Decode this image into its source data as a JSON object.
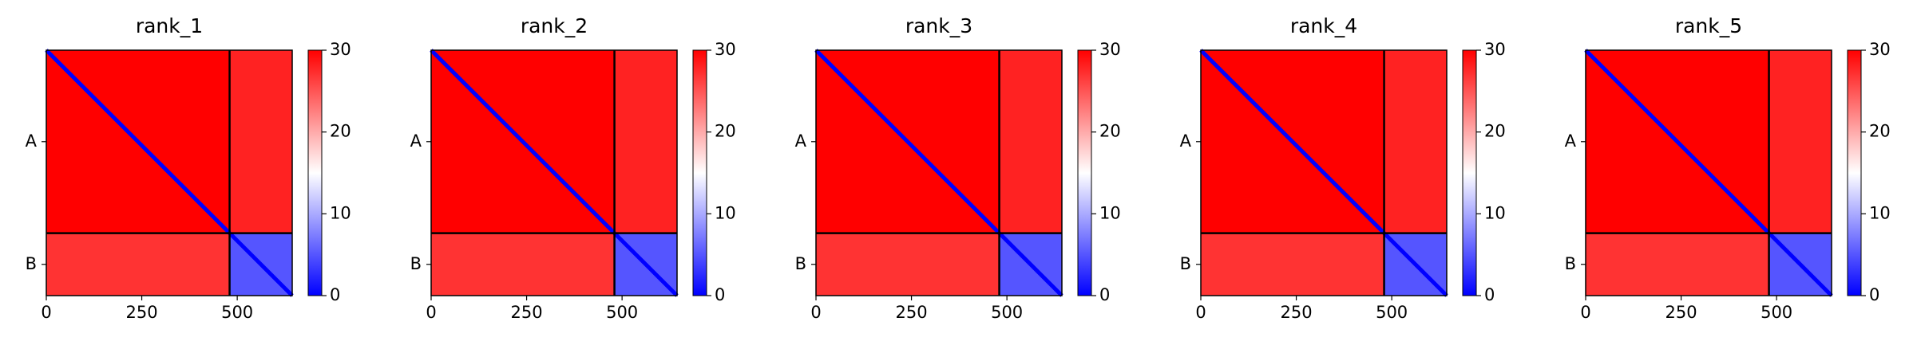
{
  "chart_data": [
    {
      "type": "heatmap",
      "title": "rank_1",
      "cmap": "bwr",
      "xlim": [
        0,
        644
      ],
      "ylim": [
        644,
        0
      ],
      "xticks": [
        0,
        250,
        500
      ],
      "yticks": [
        {
          "value": 240,
          "label": "A"
        },
        {
          "value": 562,
          "label": "B"
        }
      ],
      "chain_breaks": [
        480
      ],
      "clim": [
        0,
        30
      ],
      "cticks": [
        0,
        10,
        20,
        30
      ],
      "diagonal_value": 0,
      "blocks": [
        {
          "x": [
            0,
            480
          ],
          "y": [
            0,
            480
          ],
          "value": 30
        },
        {
          "x": [
            480,
            644
          ],
          "y": [
            0,
            480
          ],
          "value": 28
        },
        {
          "x": [
            0,
            480
          ],
          "y": [
            480,
            644
          ],
          "value": 27
        },
        {
          "x": [
            480,
            644
          ],
          "y": [
            480,
            644
          ],
          "value": 5
        }
      ]
    },
    {
      "type": "heatmap",
      "title": "rank_2",
      "cmap": "bwr",
      "xlim": [
        0,
        644
      ],
      "ylim": [
        644,
        0
      ],
      "xticks": [
        0,
        250,
        500
      ],
      "yticks": [
        {
          "value": 240,
          "label": "A"
        },
        {
          "value": 562,
          "label": "B"
        }
      ],
      "chain_breaks": [
        480
      ],
      "clim": [
        0,
        30
      ],
      "cticks": [
        0,
        10,
        20,
        30
      ],
      "diagonal_value": 0,
      "blocks": [
        {
          "x": [
            0,
            480
          ],
          "y": [
            0,
            480
          ],
          "value": 30
        },
        {
          "x": [
            480,
            644
          ],
          "y": [
            0,
            480
          ],
          "value": 28
        },
        {
          "x": [
            0,
            480
          ],
          "y": [
            480,
            644
          ],
          "value": 27
        },
        {
          "x": [
            480,
            644
          ],
          "y": [
            480,
            644
          ],
          "value": 5
        }
      ]
    },
    {
      "type": "heatmap",
      "title": "rank_3",
      "cmap": "bwr",
      "xlim": [
        0,
        644
      ],
      "ylim": [
        644,
        0
      ],
      "xticks": [
        0,
        250,
        500
      ],
      "yticks": [
        {
          "value": 240,
          "label": "A"
        },
        {
          "value": 562,
          "label": "B"
        }
      ],
      "chain_breaks": [
        480
      ],
      "clim": [
        0,
        30
      ],
      "cticks": [
        0,
        10,
        20,
        30
      ],
      "diagonal_value": 0,
      "blocks": [
        {
          "x": [
            0,
            480
          ],
          "y": [
            0,
            480
          ],
          "value": 30
        },
        {
          "x": [
            480,
            644
          ],
          "y": [
            0,
            480
          ],
          "value": 28
        },
        {
          "x": [
            0,
            480
          ],
          "y": [
            480,
            644
          ],
          "value": 27
        },
        {
          "x": [
            480,
            644
          ],
          "y": [
            480,
            644
          ],
          "value": 5
        }
      ]
    },
    {
      "type": "heatmap",
      "title": "rank_4",
      "cmap": "bwr",
      "xlim": [
        0,
        644
      ],
      "ylim": [
        644,
        0
      ],
      "xticks": [
        0,
        250,
        500
      ],
      "yticks": [
        {
          "value": 240,
          "label": "A"
        },
        {
          "value": 562,
          "label": "B"
        }
      ],
      "chain_breaks": [
        480
      ],
      "clim": [
        0,
        30
      ],
      "cticks": [
        0,
        10,
        20,
        30
      ],
      "diagonal_value": 0,
      "blocks": [
        {
          "x": [
            0,
            480
          ],
          "y": [
            0,
            480
          ],
          "value": 30
        },
        {
          "x": [
            480,
            644
          ],
          "y": [
            0,
            480
          ],
          "value": 28
        },
        {
          "x": [
            0,
            480
          ],
          "y": [
            480,
            644
          ],
          "value": 27
        },
        {
          "x": [
            480,
            644
          ],
          "y": [
            480,
            644
          ],
          "value": 5
        }
      ]
    },
    {
      "type": "heatmap",
      "title": "rank_5",
      "cmap": "bwr",
      "xlim": [
        0,
        644
      ],
      "ylim": [
        644,
        0
      ],
      "xticks": [
        0,
        250,
        500
      ],
      "yticks": [
        {
          "value": 240,
          "label": "A"
        },
        {
          "value": 562,
          "label": "B"
        }
      ],
      "chain_breaks": [
        480
      ],
      "clim": [
        0,
        30
      ],
      "cticks": [
        0,
        10,
        20,
        30
      ],
      "diagonal_value": 0,
      "blocks": [
        {
          "x": [
            0,
            480
          ],
          "y": [
            0,
            480
          ],
          "value": 30
        },
        {
          "x": [
            480,
            644
          ],
          "y": [
            0,
            480
          ],
          "value": 28
        },
        {
          "x": [
            0,
            480
          ],
          "y": [
            480,
            644
          ],
          "value": 27
        },
        {
          "x": [
            480,
            644
          ],
          "y": [
            480,
            644
          ],
          "value": 5
        }
      ]
    }
  ]
}
